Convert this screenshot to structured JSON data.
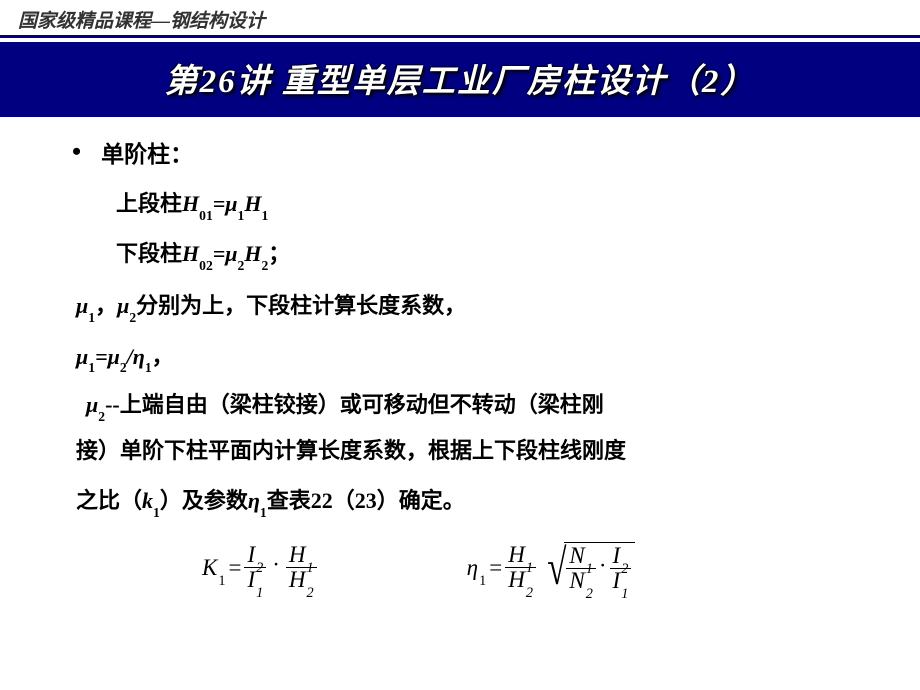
{
  "header": {
    "course_label": "国家级精品课程—钢结构设计"
  },
  "title": {
    "text": "第26讲 重型单层工业厂房柱设计（2）"
  },
  "content": {
    "bullet": "单阶柱：",
    "line_upper_pre": "上段柱",
    "line_upper_var": "H",
    "line_upper_sub": "01",
    "line_upper_eq": "=μ",
    "line_upper_sub2": "1",
    "line_upper_var2": "H",
    "line_upper_sub3": "1",
    "line_lower_pre": "下段柱",
    "line_lower_var": "H",
    "line_lower_sub": "02",
    "line_lower_eq": "=μ",
    "line_lower_sub2": "2",
    "line_lower_var2": "H",
    "line_lower_sub3": "2",
    "line_lower_post": "；",
    "mu_desc_pre": "μ",
    "mu_desc_s1": "1",
    "mu_desc_sep": "，",
    "mu_desc_pre2": "μ",
    "mu_desc_s2": "2",
    "mu_desc_text": "分别为上，下段柱计算长度系数，",
    "mu_rel": "μ",
    "mu_rel_s1": "1",
    "mu_rel_eq": "=μ",
    "mu_rel_s2": "2",
    "mu_rel_div": "/η",
    "mu_rel_s3": "1",
    "mu_rel_post": "，",
    "mu2_pre": "μ",
    "mu2_sub": "2",
    "mu2_text1": "--上端自由（梁柱铰接）或可移动但不转动（梁柱刚",
    "mu2_text2": "接）单阶下柱平面内计算长度系数，根据上下段柱线刚度",
    "mu2_text3a": "之比（",
    "mu2_k": "k",
    "mu2_ksub": "1",
    "mu2_text3b": "）及参数",
    "mu2_eta": "η",
    "mu2_etasub": "1",
    "mu2_text3c": "查表22（23）确定。"
  },
  "formulas": {
    "K": "K",
    "one": "1",
    "eq": "=",
    "I": "I",
    "two": "2",
    "H": "H",
    "eta": "η",
    "N": "N"
  }
}
